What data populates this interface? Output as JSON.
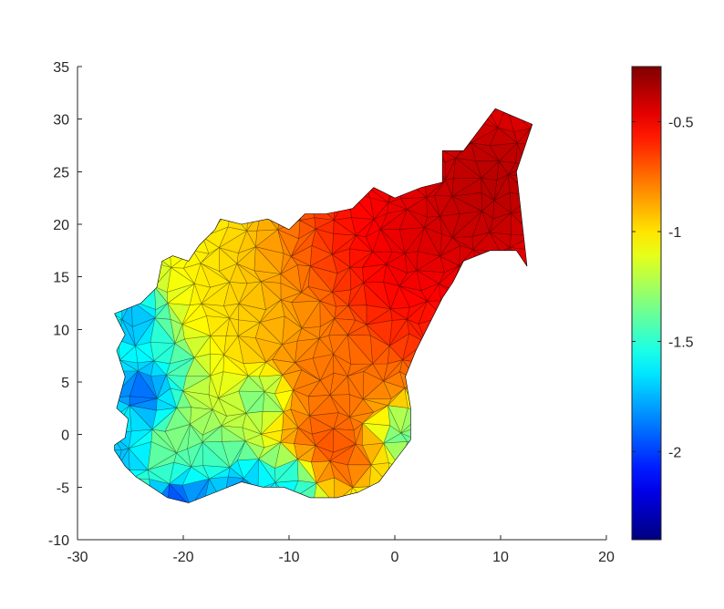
{
  "chart_data": {
    "type": "heatmap",
    "subtype": "triangulated mesh surface (view from above) with colorbar",
    "title": "",
    "xlabel": "",
    "ylabel": "",
    "xlim": [
      -30,
      20
    ],
    "ylim": [
      -10,
      35
    ],
    "x_ticks": [
      -30,
      -20,
      -10,
      0,
      10,
      20
    ],
    "y_ticks": [
      -10,
      -5,
      0,
      5,
      10,
      15,
      20,
      25,
      30,
      35
    ],
    "x_tick_labels": [
      "-30",
      "-20",
      "-10",
      "0",
      "10",
      "20"
    ],
    "y_tick_labels": [
      "-10",
      "-5",
      "0",
      "5",
      "10",
      "15",
      "20",
      "25",
      "30",
      "35"
    ],
    "colormap": "jet",
    "color_limits": [
      -2.4,
      -0.25
    ],
    "colorbar_ticks": [
      -2,
      -1.5,
      -1,
      -0.5
    ],
    "colorbar_tick_labels": [
      "-2",
      "-1.5",
      "-1",
      "-0.5"
    ],
    "colorbar_placement": "right",
    "grid": false,
    "edge_color": "#000000",
    "region_boundary": [
      [
        -26.5,
        -1.0
      ],
      [
        -25.5,
        -0.3
      ],
      [
        -25.2,
        1.5
      ],
      [
        -26.3,
        2.5
      ],
      [
        -25.5,
        5.5
      ],
      [
        -26.3,
        8.0
      ],
      [
        -25.5,
        9.5
      ],
      [
        -26.5,
        11.5
      ],
      [
        -24.0,
        12.5
      ],
      [
        -22.5,
        14.0
      ],
      [
        -22.0,
        16.5
      ],
      [
        -21.0,
        17.0
      ],
      [
        -19.5,
        16.5
      ],
      [
        -18.5,
        18.0
      ],
      [
        -17.0,
        19.5
      ],
      [
        -16.5,
        20.5
      ],
      [
        -14.5,
        20.0
      ],
      [
        -12.0,
        20.5
      ],
      [
        -10.0,
        19.5
      ],
      [
        -8.5,
        21.0
      ],
      [
        -6.5,
        21.0
      ],
      [
        -4.0,
        21.5
      ],
      [
        -2.0,
        23.5
      ],
      [
        0.0,
        22.5
      ],
      [
        2.5,
        23.5
      ],
      [
        4.5,
        24.0
      ],
      [
        4.5,
        27.0
      ],
      [
        6.5,
        27.0
      ],
      [
        9.5,
        31.0
      ],
      [
        13.0,
        29.5
      ],
      [
        11.5,
        25.0
      ],
      [
        12.5,
        16.0
      ],
      [
        11.5,
        17.5
      ],
      [
        9.0,
        17.5
      ],
      [
        6.5,
        16.5
      ],
      [
        5.5,
        14.5
      ],
      [
        4.5,
        13.0
      ],
      [
        3.5,
        11.0
      ],
      [
        2.0,
        8.0
      ],
      [
        1.0,
        5.5
      ],
      [
        1.5,
        2.5
      ],
      [
        1.5,
        -0.5
      ],
      [
        0.0,
        -2.5
      ],
      [
        -1.5,
        -4.5
      ],
      [
        -3.5,
        -5.5
      ],
      [
        -5.5,
        -6.0
      ],
      [
        -8.0,
        -6.0
      ],
      [
        -10.5,
        -5.0
      ],
      [
        -12.5,
        -5.0
      ],
      [
        -14.5,
        -4.5
      ],
      [
        -17.0,
        -5.5
      ],
      [
        -19.5,
        -6.5
      ],
      [
        -21.5,
        -6.0
      ],
      [
        -23.0,
        -5.0
      ],
      [
        -24.5,
        -4.0
      ],
      [
        -25.5,
        -3.0
      ],
      [
        -26.5,
        -1.5
      ]
    ],
    "value_field": {
      "base": -1.35,
      "centers": [
        {
          "x": 10.0,
          "y": 25.0,
          "value": -0.25,
          "spread": 5.0
        },
        {
          "x": 7.0,
          "y": 20.0,
          "value": -0.35,
          "spread": 6.0
        },
        {
          "x": 2.0,
          "y": 17.0,
          "value": -0.35,
          "spread": 5.0
        },
        {
          "x": 3.5,
          "y": 12.0,
          "value": -0.6,
          "spread": 4.0
        },
        {
          "x": -4.0,
          "y": 19.0,
          "value": -0.5,
          "spread": 3.5
        },
        {
          "x": -6.0,
          "y": 17.0,
          "value": -0.55,
          "spread": 3.0
        },
        {
          "x": -1.0,
          "y": 22.0,
          "value": -0.5,
          "spread": 3.0
        },
        {
          "x": -9.0,
          "y": 15.0,
          "value": -0.75,
          "spread": 3.5
        },
        {
          "x": -12.0,
          "y": 16.0,
          "value": -0.85,
          "spread": 4.0
        },
        {
          "x": -17.0,
          "y": 15.0,
          "value": -1.05,
          "spread": 4.0
        },
        {
          "x": -10.0,
          "y": 6.0,
          "value": -0.7,
          "spread": 3.0
        },
        {
          "x": -5.0,
          "y": 6.0,
          "value": -0.7,
          "spread": 3.0
        },
        {
          "x": -14.0,
          "y": 11.0,
          "value": -0.95,
          "spread": 4.0
        },
        {
          "x": -6.0,
          "y": -1.0,
          "value": -0.6,
          "spread": 2.5
        },
        {
          "x": -2.0,
          "y": 1.5,
          "value": -0.75,
          "spread": 2.5
        },
        {
          "x": -18.0,
          "y": 3.0,
          "value": -1.15,
          "spread": 3.5
        },
        {
          "x": -23.0,
          "y": 4.0,
          "value": -2.2,
          "spread": 1.8
        },
        {
          "x": -24.0,
          "y": 11.0,
          "value": -1.9,
          "spread": 1.8
        },
        {
          "x": -20.0,
          "y": -6.5,
          "value": -2.1,
          "spread": 1.5
        },
        {
          "x": -15.0,
          "y": -5.0,
          "value": -1.9,
          "spread": 1.5
        },
        {
          "x": -12.5,
          "y": 4.0,
          "value": -1.85,
          "spread": 1.4
        },
        {
          "x": 0.0,
          "y": 0.5,
          "value": -1.8,
          "spread": 1.4
        },
        {
          "x": -10.0,
          "y": -4.5,
          "value": -1.7,
          "spread": 1.5
        },
        {
          "x": -25.5,
          "y": -1.5,
          "value": -1.8,
          "spread": 1.4
        },
        {
          "x": -21.0,
          "y": 7.0,
          "value": -1.65,
          "spread": 1.5
        },
        {
          "x": -18.0,
          "y": -2.0,
          "value": -1.55,
          "spread": 2.0
        }
      ]
    }
  }
}
